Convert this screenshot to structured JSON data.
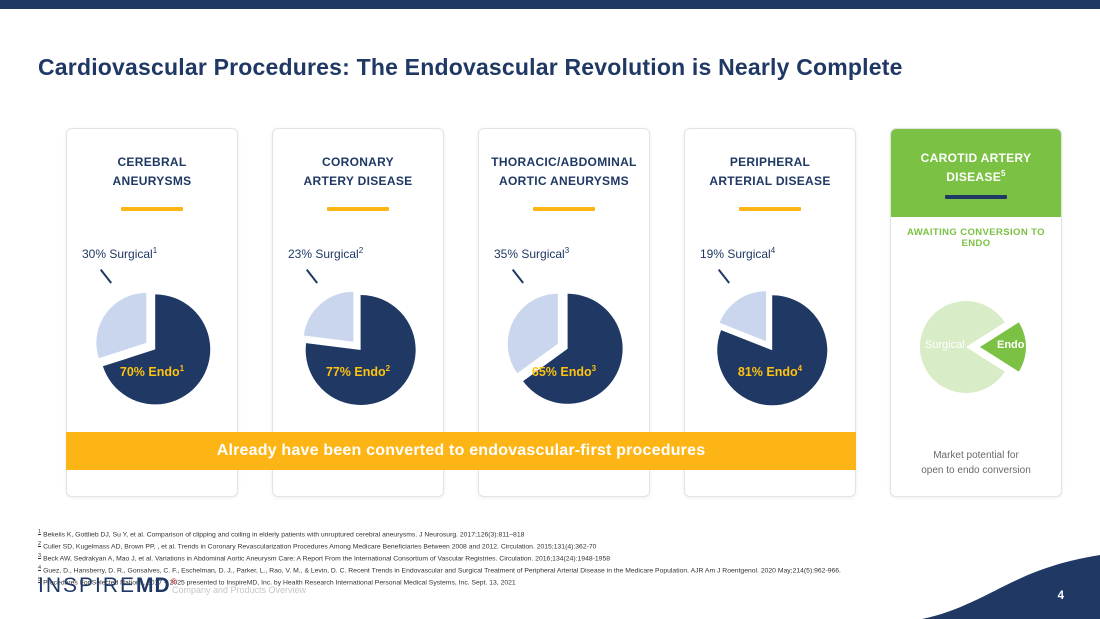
{
  "slide": {
    "title": "Cardiovascular Procedures: The Endovascular Revolution is Nearly Complete",
    "page_number": "4",
    "footer_caption": "Company and Products Overview"
  },
  "logo": {
    "inspire": "INSPIRE",
    "md": "MD",
    "registered": "®"
  },
  "banner": {
    "label": "Already have been converted to endovascular-first procedures"
  },
  "columns": [
    {
      "title_line1": "CEREBRAL",
      "title_line2": "ANEURYSMS",
      "surgical_label": "30% Surgical",
      "surgical_sup": "1",
      "endo_label": "70% Endo",
      "endo_sup": "1"
    },
    {
      "title_line1": "CORONARY",
      "title_line2": "ARTERY DISEASE",
      "surgical_label": "23% Surgical",
      "surgical_sup": "2",
      "endo_label": "77% Endo",
      "endo_sup": "2"
    },
    {
      "title_line1": "THORACIC/ABDOMINAL",
      "title_line2": "AORTIC ANEURYSMS",
      "surgical_label": "35% Surgical",
      "surgical_sup": "3",
      "endo_label": "65% Endo",
      "endo_sup": "3"
    },
    {
      "title_line1": "PERIPHERAL",
      "title_line2": "ARTERIAL DISEASE",
      "surgical_label": "19% Surgical",
      "surgical_sup": "4",
      "endo_label": "81% Endo",
      "endo_sup": "4"
    }
  ],
  "carotid": {
    "title_line1": "CAROTID ARTERY",
    "title_line2": "DISEASE",
    "title_sup": "5",
    "subtitle": "AWAITING CONVERSION TO ENDO",
    "surgical_label": "Surgical",
    "endo_label": "Endo",
    "caption_line1": "Market potential for",
    "caption_line2": "open to endo conversion"
  },
  "footnotes": [
    {
      "num": "1",
      "text": "Bekelis K, Gottlieb DJ, Su Y, et al. Comparison of clipping and coiling in elderly patients with unruptured cerebral aneurysms. J Neurosurg. 2017;126(3):811–818"
    },
    {
      "num": "2",
      "text": "Culler SD, Kugelmass AD, Brown PP, , et al. Trends in Coronary Revascularization Procedures Among Medicare Beneficiaries Between 2008 and 2012. Circulation. 2015;131(4):362-70"
    },
    {
      "num": "3",
      "text": "Beck AW, Sedrakyan A, Mao J, et al. Variations in Abdominal Aortic Aneurysm Care: A Report From the International Consortium of Vascular Registries. Circulation. 2016;134(24):1948-1958"
    },
    {
      "num": "4",
      "text": "Guez, D., Hansberry, D. R., Gonsalves, C. F., Eschelman, D. J., Parker, L., Rao, V. M., & Levin, D. C. Recent Trends in Endovascular and Surgical Treatment of Peripheral Arterial Disease in the Medicare Population. AJR Am J Roentgenol. 2020 May;214(5):962-966."
    },
    {
      "num": "5",
      "text": "Procedures For Selected Nations, 2017 – 2025 presented to InspireMD, Inc. by Health Research International Personal Medical Systems, Inc. Sept. 13, 2021"
    }
  ],
  "colors": {
    "navy": "#1f3864",
    "gold": "#fdb515",
    "endo_label_yellow": "#ffc20e",
    "light_blue": "#c9d6ee",
    "green": "#7bc143",
    "light_green": "#d9ecc8"
  },
  "chart_data": [
    {
      "type": "pie",
      "title": "Cerebral Aneurysms",
      "orientation": "minor-ends-at-top",
      "slices": [
        {
          "label": "Surgical",
          "value": 30,
          "color": "#c9d6ee",
          "exploded": true
        },
        {
          "label": "Endo",
          "value": 70,
          "color": "#1f3864"
        }
      ]
    },
    {
      "type": "pie",
      "title": "Coronary Artery Disease",
      "orientation": "minor-ends-at-top",
      "slices": [
        {
          "label": "Surgical",
          "value": 23,
          "color": "#c9d6ee",
          "exploded": true
        },
        {
          "label": "Endo",
          "value": 77,
          "color": "#1f3864"
        }
      ]
    },
    {
      "type": "pie",
      "title": "Thoracic/Abdominal Aortic Aneurysms",
      "orientation": "minor-ends-at-top",
      "slices": [
        {
          "label": "Surgical",
          "value": 35,
          "color": "#c9d6ee",
          "exploded": true
        },
        {
          "label": "Endo",
          "value": 65,
          "color": "#1f3864"
        }
      ]
    },
    {
      "type": "pie",
      "title": "Peripheral Arterial Disease",
      "orientation": "minor-ends-at-top",
      "slices": [
        {
          "label": "Surgical",
          "value": 19,
          "color": "#c9d6ee",
          "exploded": true
        },
        {
          "label": "Endo",
          "value": 81,
          "color": "#1f3864"
        }
      ]
    },
    {
      "type": "pie",
      "title": "Carotid Artery Disease",
      "orientation": "minor-points-right",
      "slices": [
        {
          "label": "Surgical",
          "value": 82,
          "color": "#d9ecc8"
        },
        {
          "label": "Endo",
          "value": 18,
          "color": "#7bc143",
          "exploded": true
        }
      ]
    }
  ]
}
